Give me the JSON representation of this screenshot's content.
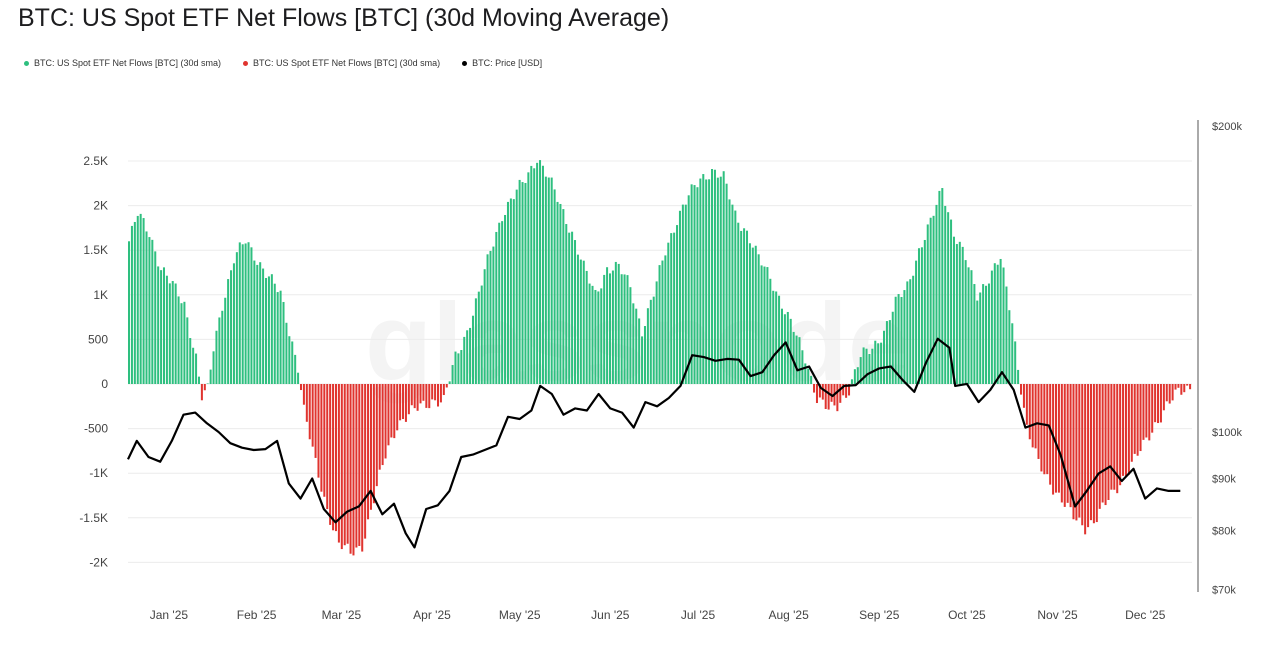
{
  "title": "BTC: US Spot ETF Net Flows [BTC] (30d Moving Average)",
  "watermark": "glassnode",
  "legend": [
    {
      "label": "BTC: US Spot ETF Net Flows [BTC] (30d sma)",
      "color": "#2ebf7f"
    },
    {
      "label": "BTC: US Spot ETF Net Flows [BTC] (30d sma)",
      "color": "#e0342f"
    },
    {
      "label": "BTC: Price [USD]",
      "color": "#000000"
    }
  ],
  "chart_data": {
    "type": "bar",
    "x_tick_labels": [
      "Jan '25",
      "Feb '25",
      "Mar '25",
      "Apr '25",
      "May '25",
      "Jun '25",
      "Jul '25",
      "Aug '25",
      "Sep '25",
      "Oct '25",
      "Nov '25",
      "Dec '25"
    ],
    "y_left_ticks": [
      "2.5K",
      "2K",
      "1.5K",
      "1K",
      "500",
      "0",
      "-500",
      "-1K",
      "-1.5K",
      "-2K"
    ],
    "y_left_lim": [
      -2200,
      2750
    ],
    "y_right_ticks": [
      "$200k",
      "$100k",
      "$90k",
      "$80k",
      "$70k"
    ],
    "y_right_scale": "log",
    "y_right_lim": [
      70000,
      200000
    ],
    "grid": true,
    "legend_position": "top-left",
    "flow_series": {
      "name": "BTC: US Spot ETF Net Flows [BTC] (30d sma)",
      "positive_color": "#2ebf7f",
      "negative_color": "#e0342f",
      "points": [
        [
          "2025-01-01",
          1600
        ],
        [
          "2025-01-04",
          1900
        ],
        [
          "2025-01-08",
          1700
        ],
        [
          "2025-01-12",
          1300
        ],
        [
          "2025-01-16",
          1100
        ],
        [
          "2025-01-20",
          900
        ],
        [
          "2025-01-24",
          300
        ],
        [
          "2025-01-26",
          -150
        ],
        [
          "2025-01-28",
          -80
        ],
        [
          "2025-01-30",
          400
        ],
        [
          "2025-02-02",
          900
        ],
        [
          "2025-02-06",
          1400
        ],
        [
          "2025-02-10",
          1600
        ],
        [
          "2025-02-14",
          1400
        ],
        [
          "2025-02-18",
          1200
        ],
        [
          "2025-02-22",
          1000
        ],
        [
          "2025-02-25",
          600
        ],
        [
          "2025-02-28",
          200
        ],
        [
          "2025-03-02",
          -300
        ],
        [
          "2025-03-06",
          -900
        ],
        [
          "2025-03-10",
          -1400
        ],
        [
          "2025-03-14",
          -1800
        ],
        [
          "2025-03-18",
          -1900
        ],
        [
          "2025-03-22",
          -1800
        ],
        [
          "2025-03-26",
          -1300
        ],
        [
          "2025-03-30",
          -800
        ],
        [
          "2025-04-03",
          -450
        ],
        [
          "2025-04-07",
          -350
        ],
        [
          "2025-04-11",
          -250
        ],
        [
          "2025-04-15",
          -180
        ],
        [
          "2025-04-19",
          -200
        ],
        [
          "2025-04-23",
          300
        ],
        [
          "2025-04-27",
          600
        ],
        [
          "2025-05-01",
          1000
        ],
        [
          "2025-05-05",
          1500
        ],
        [
          "2025-05-09",
          1900
        ],
        [
          "2025-05-13",
          2100
        ],
        [
          "2025-05-17",
          2300
        ],
        [
          "2025-05-21",
          2550
        ],
        [
          "2025-05-25",
          2300
        ],
        [
          "2025-05-29",
          2000
        ],
        [
          "2025-06-02",
          1700
        ],
        [
          "2025-06-06",
          1300
        ],
        [
          "2025-06-10",
          1000
        ],
        [
          "2025-06-14",
          1300
        ],
        [
          "2025-06-18",
          1300
        ],
        [
          "2025-06-22",
          1100
        ],
        [
          "2025-06-26",
          600
        ],
        [
          "2025-06-30",
          1000
        ],
        [
          "2025-07-04",
          1500
        ],
        [
          "2025-07-08",
          1850
        ],
        [
          "2025-07-12",
          2100
        ],
        [
          "2025-07-16",
          2300
        ],
        [
          "2025-07-20",
          2400
        ],
        [
          "2025-07-24",
          2300
        ],
        [
          "2025-07-28",
          1900
        ],
        [
          "2025-08-01",
          1700
        ],
        [
          "2025-08-05",
          1400
        ],
        [
          "2025-08-09",
          1200
        ],
        [
          "2025-08-13",
          900
        ],
        [
          "2025-08-17",
          600
        ],
        [
          "2025-08-21",
          300
        ],
        [
          "2025-08-25",
          -150
        ],
        [
          "2025-08-29",
          -300
        ],
        [
          "2025-09-01",
          -250
        ],
        [
          "2025-09-05",
          -50
        ],
        [
          "2025-09-09",
          300
        ],
        [
          "2025-09-13",
          400
        ],
        [
          "2025-09-17",
          600
        ],
        [
          "2025-09-21",
          900
        ],
        [
          "2025-09-25",
          1100
        ],
        [
          "2025-09-29",
          1500
        ],
        [
          "2025-10-03",
          1800
        ],
        [
          "2025-10-07",
          2200
        ],
        [
          "2025-10-11",
          1700
        ],
        [
          "2025-10-15",
          1400
        ],
        [
          "2025-10-19",
          1000
        ],
        [
          "2025-10-23",
          1200
        ],
        [
          "2025-10-27",
          1400
        ],
        [
          "2025-10-31",
          700
        ],
        [
          "2025-11-02",
          200
        ],
        [
          "2025-11-05",
          -500
        ],
        [
          "2025-11-09",
          -900
        ],
        [
          "2025-11-13",
          -1100
        ],
        [
          "2025-11-17",
          -1300
        ],
        [
          "2025-11-21",
          -1500
        ],
        [
          "2025-11-25",
          -1600
        ],
        [
          "2025-11-29",
          -1500
        ],
        [
          "2025-12-03",
          -1300
        ],
        [
          "2025-12-07",
          -1100
        ],
        [
          "2025-12-11",
          -900
        ],
        [
          "2025-12-15",
          -700
        ],
        [
          "2025-12-19",
          -450
        ],
        [
          "2025-12-23",
          -250
        ],
        [
          "2025-12-27",
          -100
        ],
        [
          "2025-12-31",
          -30
        ]
      ]
    },
    "price_series": {
      "name": "BTC: Price [USD]",
      "color": "#000000",
      "points": [
        [
          "2025-01-01",
          94000
        ],
        [
          "2025-01-04",
          98000
        ],
        [
          "2025-01-08",
          94500
        ],
        [
          "2025-01-12",
          93500
        ],
        [
          "2025-01-16",
          98000
        ],
        [
          "2025-01-20",
          104000
        ],
        [
          "2025-01-24",
          104500
        ],
        [
          "2025-01-28",
          102000
        ],
        [
          "2025-02-01",
          100000
        ],
        [
          "2025-02-05",
          97500
        ],
        [
          "2025-02-09",
          96500
        ],
        [
          "2025-02-13",
          96000
        ],
        [
          "2025-02-17",
          96200
        ],
        [
          "2025-02-21",
          98000
        ],
        [
          "2025-02-25",
          89000
        ],
        [
          "2025-03-01",
          86000
        ],
        [
          "2025-03-05",
          90000
        ],
        [
          "2025-03-09",
          84000
        ],
        [
          "2025-03-13",
          81500
        ],
        [
          "2025-03-17",
          83500
        ],
        [
          "2025-03-21",
          84500
        ],
        [
          "2025-03-25",
          87500
        ],
        [
          "2025-03-29",
          83000
        ],
        [
          "2025-04-02",
          85000
        ],
        [
          "2025-04-06",
          79500
        ],
        [
          "2025-04-09",
          77000
        ],
        [
          "2025-04-13",
          84000
        ],
        [
          "2025-04-17",
          84700
        ],
        [
          "2025-04-21",
          87500
        ],
        [
          "2025-04-25",
          94500
        ],
        [
          "2025-04-29",
          95000
        ],
        [
          "2025-05-03",
          96000
        ],
        [
          "2025-05-07",
          97000
        ],
        [
          "2025-05-11",
          103500
        ],
        [
          "2025-05-15",
          103000
        ],
        [
          "2025-05-19",
          105000
        ],
        [
          "2025-05-22",
          111000
        ],
        [
          "2025-05-26",
          109000
        ],
        [
          "2025-05-30",
          104000
        ],
        [
          "2025-06-03",
          105500
        ],
        [
          "2025-06-07",
          105000
        ],
        [
          "2025-06-11",
          109000
        ],
        [
          "2025-06-15",
          105500
        ],
        [
          "2025-06-19",
          104500
        ],
        [
          "2025-06-23",
          101000
        ],
        [
          "2025-06-27",
          107000
        ],
        [
          "2025-07-01",
          106000
        ],
        [
          "2025-07-05",
          108000
        ],
        [
          "2025-07-09",
          111000
        ],
        [
          "2025-07-13",
          119000
        ],
        [
          "2025-07-17",
          118500
        ],
        [
          "2025-07-21",
          117500
        ],
        [
          "2025-07-25",
          118000
        ],
        [
          "2025-07-29",
          117800
        ],
        [
          "2025-08-02",
          113500
        ],
        [
          "2025-08-06",
          114500
        ],
        [
          "2025-08-10",
          119000
        ],
        [
          "2025-08-14",
          122500
        ],
        [
          "2025-08-18",
          115000
        ],
        [
          "2025-08-22",
          116000
        ],
        [
          "2025-08-26",
          110500
        ],
        [
          "2025-08-30",
          108500
        ],
        [
          "2025-09-03",
          111000
        ],
        [
          "2025-09-07",
          111200
        ],
        [
          "2025-09-11",
          114000
        ],
        [
          "2025-09-15",
          115500
        ],
        [
          "2025-09-19",
          116000
        ],
        [
          "2025-09-23",
          112500
        ],
        [
          "2025-09-27",
          109500
        ],
        [
          "2025-10-01",
          117000
        ],
        [
          "2025-10-05",
          123500
        ],
        [
          "2025-10-09",
          121000
        ],
        [
          "2025-10-11",
          111000
        ],
        [
          "2025-10-15",
          111500
        ],
        [
          "2025-10-19",
          107000
        ],
        [
          "2025-10-23",
          110000
        ],
        [
          "2025-10-27",
          114500
        ],
        [
          "2025-10-31",
          110000
        ],
        [
          "2025-11-04",
          101000
        ],
        [
          "2025-11-08",
          102000
        ],
        [
          "2025-11-12",
          101500
        ],
        [
          "2025-11-16",
          95000
        ],
        [
          "2025-11-21",
          84500
        ],
        [
          "2025-11-25",
          87500
        ],
        [
          "2025-11-29",
          91000
        ],
        [
          "2025-12-03",
          92500
        ],
        [
          "2025-12-07",
          89500
        ],
        [
          "2025-12-11",
          92000
        ],
        [
          "2025-12-15",
          86000
        ],
        [
          "2025-12-19",
          88000
        ],
        [
          "2025-12-23",
          87500
        ],
        [
          "2025-12-27",
          87500
        ]
      ]
    }
  }
}
